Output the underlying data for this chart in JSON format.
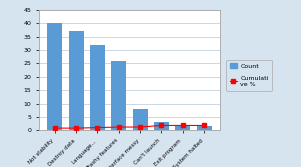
{
  "categories": [
    "Not stability",
    "Destroy data",
    "Language...",
    "Trashy features",
    "Interface messy",
    "Can't launch",
    "Exit program",
    "System halted"
  ],
  "counts": [
    40,
    37,
    32,
    26,
    8,
    3,
    1.5,
    1.5
  ],
  "cumulative": [
    0.8,
    0.8,
    1.0,
    1.2,
    1.2,
    1.8,
    1.8,
    1.8
  ],
  "bar_color": "#5B9BD5",
  "line_color": "#FF0000",
  "ylim_left": [
    0,
    45
  ],
  "yticks_left": [
    0,
    5,
    10,
    15,
    20,
    25,
    30,
    35,
    40,
    45
  ],
  "legend_count": "Count",
  "legend_cumul": "Cumulati\nve %",
  "outer_bg": "#D6E4F0",
  "plot_bg": "#FFFFFF",
  "grid_color": "#B8C8D8",
  "figsize": [
    3.01,
    1.67
  ],
  "dpi": 100
}
